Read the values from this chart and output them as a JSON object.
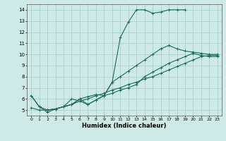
{
  "xlabel": "Humidex (Indice chaleur)",
  "ylabel": "",
  "bg_color": "#ceeae6",
  "grid_color": "#aacfcc",
  "line_color": "#1a6b5a",
  "xlim": [
    -0.5,
    23.5
  ],
  "ylim": [
    4.5,
    14.5
  ],
  "xticks": [
    0,
    1,
    2,
    3,
    4,
    5,
    6,
    7,
    8,
    9,
    10,
    11,
    12,
    13,
    14,
    15,
    16,
    17,
    18,
    19,
    20,
    21,
    22,
    23
  ],
  "yticks": [
    5,
    6,
    7,
    8,
    9,
    10,
    11,
    12,
    13,
    14
  ],
  "series": [
    {
      "x": [
        0,
        1,
        2,
        3,
        4,
        5,
        6,
        7,
        8,
        9,
        10,
        11,
        12,
        13,
        14,
        15,
        16,
        17,
        18,
        19
      ],
      "y": [
        6.3,
        5.3,
        4.8,
        5.1,
        5.3,
        6.0,
        5.8,
        5.5,
        5.9,
        6.3,
        7.5,
        11.5,
        12.9,
        14.0,
        14.0,
        13.7,
        13.8,
        14.0,
        14.0,
        14.0
      ]
    },
    {
      "x": [
        0,
        1,
        2,
        3,
        4,
        5,
        6,
        7,
        8,
        9,
        10,
        11,
        12,
        13,
        14,
        15,
        16,
        17,
        18,
        19,
        20,
        21,
        22,
        23
      ],
      "y": [
        5.2,
        5.0,
        5.0,
        5.1,
        5.3,
        5.5,
        5.8,
        6.0,
        6.3,
        6.5,
        6.8,
        7.0,
        7.3,
        7.5,
        7.8,
        8.0,
        8.3,
        8.6,
        8.9,
        9.2,
        9.5,
        9.8,
        9.9,
        9.9
      ]
    },
    {
      "x": [
        0,
        1,
        2,
        3,
        4,
        5,
        6,
        7,
        8,
        9,
        10,
        11,
        12,
        13,
        14,
        15,
        16,
        17,
        18,
        19,
        20,
        21,
        22,
        23
      ],
      "y": [
        6.3,
        5.3,
        5.0,
        5.1,
        5.3,
        5.5,
        6.0,
        5.5,
        5.9,
        6.3,
        7.5,
        8.0,
        8.5,
        9.0,
        9.5,
        10.0,
        10.5,
        10.8,
        10.5,
        10.3,
        10.2,
        10.1,
        10.0,
        10.0
      ]
    },
    {
      "x": [
        2,
        3,
        4,
        5,
        6,
        7,
        8,
        9,
        10,
        11,
        12,
        13,
        14,
        15,
        16,
        17,
        18,
        19,
        20,
        21,
        22,
        23
      ],
      "y": [
        5.0,
        5.1,
        5.3,
        5.5,
        6.0,
        6.2,
        6.4,
        6.3,
        6.5,
        6.8,
        7.0,
        7.3,
        8.0,
        8.4,
        8.8,
        9.2,
        9.5,
        9.8,
        10.1,
        9.9,
        9.8,
        9.8
      ]
    }
  ]
}
